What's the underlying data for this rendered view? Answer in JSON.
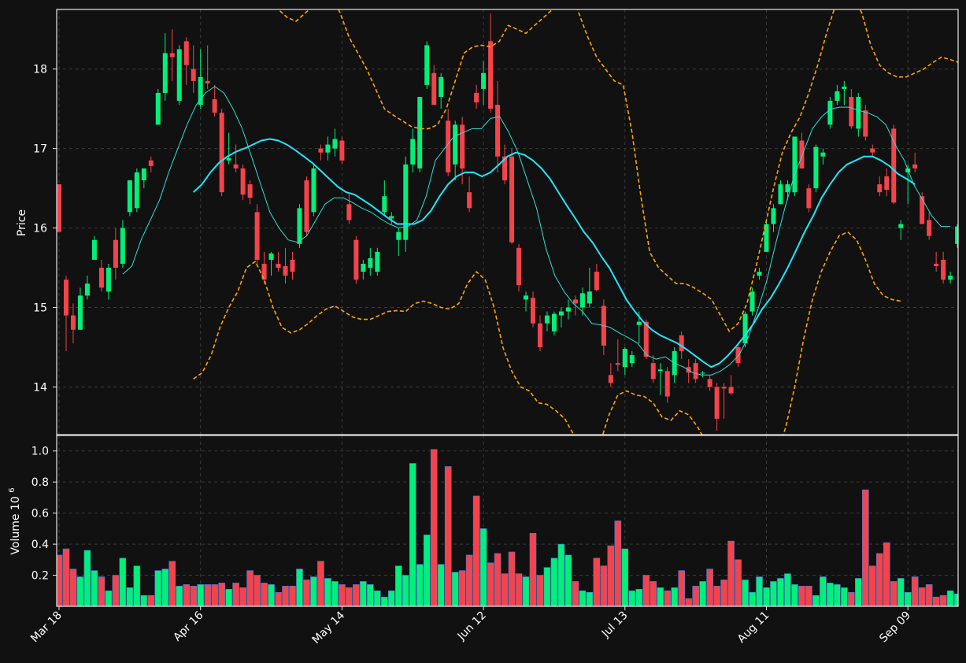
{
  "chart_data": {
    "type": "candlestick",
    "colors": {
      "background": "#111111",
      "up": "#00f07a",
      "down": "#f5434b",
      "ma_fast": "#2ee0d6",
      "ma_slow": "#1ee8ff",
      "bands": "#ffa500",
      "grid": "#3a3a3a"
    },
    "price_panel": {
      "ylabel": "Price",
      "ylim": [
        13.4,
        18.75
      ],
      "yticks": [
        "14",
        "15",
        "16",
        "17",
        "18"
      ],
      "grid": true
    },
    "volume_panel": {
      "ylabel": "Volume",
      "ylabel_exponent": "10",
      "ylabel_exponent_power": "6",
      "ylim": [
        0,
        1.1
      ],
      "yticks": [
        "0.2",
        "0.4",
        "0.6",
        "0.8",
        "1.0"
      ],
      "grid": true
    },
    "xaxis": {
      "tick_labels": [
        "Mar 18",
        "Apr 16",
        "May 14",
        "Jun 12",
        "Jul 13",
        "Aug 11",
        "Sep 09"
      ],
      "tick_index": [
        0,
        20,
        40,
        60,
        80,
        100,
        120
      ]
    },
    "candles": [
      [
        16.55,
        16.55,
        15.95,
        15.95,
        0.33
      ],
      [
        15.35,
        15.4,
        14.45,
        14.9,
        0.37
      ],
      [
        14.9,
        15.05,
        14.55,
        14.72,
        0.24
      ],
      [
        14.72,
        15.25,
        14.72,
        15.15,
        0.19
      ],
      [
        15.15,
        15.4,
        15.1,
        15.3,
        0.36
      ],
      [
        15.6,
        15.9,
        15.6,
        15.85,
        0.23
      ],
      [
        15.5,
        15.6,
        15.2,
        15.25,
        0.19
      ],
      [
        15.2,
        15.55,
        15.1,
        15.5,
        0.1
      ],
      [
        15.85,
        16.0,
        15.35,
        15.5,
        0.2
      ],
      [
        15.55,
        16.1,
        15.5,
        16.0,
        0.31
      ],
      [
        16.2,
        16.6,
        16.15,
        16.6,
        0.12
      ],
      [
        16.25,
        16.75,
        16.2,
        16.7,
        0.26
      ],
      [
        16.6,
        16.75,
        16.5,
        16.75,
        0.07
      ],
      [
        16.85,
        16.9,
        16.7,
        16.78,
        0.07
      ],
      [
        17.3,
        17.75,
        17.3,
        17.7,
        0.23
      ],
      [
        17.7,
        18.45,
        17.6,
        18.2,
        0.24
      ],
      [
        18.2,
        18.5,
        17.85,
        18.15,
        0.29
      ],
      [
        17.6,
        18.3,
        17.55,
        18.25,
        0.13
      ],
      [
        18.35,
        18.4,
        17.8,
        18.05,
        0.14
      ],
      [
        18.0,
        18.3,
        17.7,
        17.85,
        0.13
      ],
      [
        17.55,
        18.25,
        17.5,
        17.9,
        0.14
      ],
      [
        17.85,
        18.3,
        17.75,
        17.82,
        0.14
      ],
      [
        17.62,
        17.8,
        17.4,
        17.45,
        0.14
      ],
      [
        17.45,
        17.5,
        16.4,
        16.45,
        0.15
      ],
      [
        16.85,
        17.2,
        16.8,
        16.88,
        0.11
      ],
      [
        16.8,
        17.05,
        16.7,
        16.75,
        0.15
      ],
      [
        16.75,
        16.8,
        16.35,
        16.42,
        0.12
      ],
      [
        16.55,
        16.6,
        16.3,
        16.38,
        0.23
      ],
      [
        16.2,
        16.3,
        15.55,
        15.6,
        0.2
      ],
      [
        15.55,
        15.7,
        15.3,
        15.35,
        0.15
      ],
      [
        15.6,
        15.7,
        15.4,
        15.68,
        0.14
      ],
      [
        15.55,
        15.7,
        15.45,
        15.5,
        0.09
      ],
      [
        15.52,
        15.75,
        15.3,
        15.4,
        0.13
      ],
      [
        15.6,
        15.7,
        15.35,
        15.45,
        0.13
      ],
      [
        15.8,
        16.3,
        15.75,
        16.25,
        0.24
      ],
      [
        16.6,
        16.65,
        15.9,
        15.95,
        0.17
      ],
      [
        16.2,
        16.8,
        16.15,
        16.75,
        0.19
      ],
      [
        17.0,
        17.05,
        16.85,
        16.95,
        0.29
      ],
      [
        16.95,
        17.15,
        16.85,
        17.05,
        0.18
      ],
      [
        17.0,
        17.25,
        16.9,
        17.12,
        0.16
      ],
      [
        17.1,
        17.15,
        16.8,
        16.85,
        0.14
      ],
      [
        16.3,
        16.45,
        16.05,
        16.1,
        0.12
      ],
      [
        15.85,
        15.9,
        15.3,
        15.35,
        0.14
      ],
      [
        15.45,
        15.6,
        15.35,
        15.55,
        0.16
      ],
      [
        15.5,
        15.75,
        15.4,
        15.62,
        0.14
      ],
      [
        15.45,
        15.75,
        15.4,
        15.7,
        0.1
      ],
      [
        16.2,
        16.6,
        16.15,
        16.4,
        0.06
      ],
      [
        16.12,
        16.2,
        16.05,
        16.15,
        0.1
      ],
      [
        15.85,
        16.0,
        15.65,
        15.95,
        0.26
      ],
      [
        15.85,
        16.9,
        15.7,
        16.8,
        0.2
      ],
      [
        16.8,
        17.25,
        16.7,
        17.12,
        0.92
      ],
      [
        16.75,
        17.65,
        16.7,
        17.65,
        0.27
      ],
      [
        17.8,
        18.35,
        17.75,
        18.3,
        0.46
      ],
      [
        17.95,
        18.05,
        17.55,
        17.55,
        1.01
      ],
      [
        17.65,
        17.95,
        17.5,
        17.9,
        0.27
      ],
      [
        17.35,
        17.5,
        16.65,
        16.7,
        0.9
      ],
      [
        16.8,
        17.35,
        16.6,
        17.3,
        0.22
      ],
      [
        17.3,
        17.4,
        16.55,
        16.75,
        0.23
      ],
      [
        16.45,
        16.65,
        16.2,
        16.25,
        0.33
      ],
      [
        17.7,
        17.8,
        17.5,
        17.58,
        0.71
      ],
      [
        17.75,
        18.1,
        17.55,
        17.95,
        0.5
      ],
      [
        18.35,
        18.7,
        17.45,
        17.5,
        0.28
      ],
      [
        17.55,
        17.85,
        16.7,
        16.9,
        0.34
      ],
      [
        16.9,
        17.05,
        16.55,
        16.6,
        0.21
      ],
      [
        16.9,
        17.0,
        15.8,
        15.82,
        0.35
      ],
      [
        15.75,
        15.8,
        15.2,
        15.28,
        0.21
      ],
      [
        15.1,
        15.2,
        14.95,
        15.15,
        0.19
      ],
      [
        15.12,
        15.2,
        14.75,
        14.8,
        0.47
      ],
      [
        14.8,
        14.9,
        14.45,
        14.5,
        0.2
      ],
      [
        14.8,
        14.95,
        14.7,
        14.9,
        0.25
      ],
      [
        14.7,
        14.95,
        14.65,
        14.92,
        0.31
      ],
      [
        14.9,
        15.0,
        14.75,
        14.95,
        0.4
      ],
      [
        14.95,
        15.1,
        14.85,
        15.0,
        0.33
      ],
      [
        15.1,
        15.15,
        14.9,
        15.05,
        0.16
      ],
      [
        15.0,
        15.25,
        14.9,
        15.18,
        0.1
      ],
      [
        15.05,
        15.5,
        15.0,
        15.2,
        0.09
      ],
      [
        15.45,
        15.55,
        15.2,
        15.22,
        0.31
      ],
      [
        15.02,
        15.1,
        14.4,
        14.52,
        0.26
      ],
      [
        14.15,
        14.3,
        14.0,
        14.05,
        0.39
      ],
      [
        14.3,
        14.6,
        14.2,
        14.28,
        0.55
      ],
      [
        14.25,
        14.5,
        14.15,
        14.48,
        0.37
      ],
      [
        14.3,
        14.45,
        14.25,
        14.4,
        0.1
      ],
      [
        14.78,
        14.95,
        14.55,
        14.82,
        0.11
      ],
      [
        14.82,
        14.85,
        14.35,
        14.38,
        0.2
      ],
      [
        14.3,
        14.4,
        14.05,
        14.1,
        0.16
      ],
      [
        14.2,
        14.3,
        13.9,
        14.22,
        0.12
      ],
      [
        14.2,
        14.25,
        13.8,
        13.88,
        0.1
      ],
      [
        14.15,
        14.5,
        14.05,
        14.45,
        0.12
      ],
      [
        14.65,
        14.7,
        14.35,
        14.45,
        0.23
      ],
      [
        14.25,
        14.35,
        14.05,
        14.18,
        0.05
      ],
      [
        14.3,
        14.35,
        14.05,
        14.1,
        0.13
      ],
      [
        14.18,
        14.2,
        14.12,
        14.18,
        0.16
      ],
      [
        14.1,
        14.15,
        13.95,
        14.0,
        0.24
      ],
      [
        14.0,
        14.05,
        13.45,
        13.6,
        0.13
      ],
      [
        14.0,
        14.05,
        13.6,
        13.98,
        0.17
      ],
      [
        14.0,
        14.15,
        13.9,
        13.92,
        0.42
      ],
      [
        14.5,
        14.55,
        14.25,
        14.3,
        0.3
      ],
      [
        14.55,
        14.95,
        14.5,
        14.92,
        0.17
      ],
      [
        14.95,
        15.25,
        14.9,
        15.2,
        0.09
      ],
      [
        15.4,
        15.5,
        15.35,
        15.45,
        0.19
      ],
      [
        15.7,
        16.1,
        15.7,
        16.05,
        0.12
      ],
      [
        16.05,
        16.3,
        15.95,
        16.25,
        0.16
      ],
      [
        16.3,
        16.6,
        16.3,
        16.55,
        0.18
      ],
      [
        16.45,
        16.6,
        16.35,
        16.55,
        0.21
      ],
      [
        16.45,
        17.15,
        16.4,
        17.15,
        0.14
      ],
      [
        17.1,
        17.2,
        16.75,
        16.75,
        0.13
      ],
      [
        16.5,
        16.55,
        16.2,
        16.25,
        0.13
      ],
      [
        16.5,
        17.05,
        16.45,
        17.02,
        0.07
      ],
      [
        16.9,
        17.0,
        16.8,
        16.95,
        0.19
      ],
      [
        17.3,
        17.65,
        17.25,
        17.6,
        0.15
      ],
      [
        17.6,
        17.8,
        17.55,
        17.72,
        0.14
      ],
      [
        17.75,
        17.85,
        17.55,
        17.78,
        0.12
      ],
      [
        17.65,
        17.75,
        17.25,
        17.28,
        0.09
      ],
      [
        17.25,
        17.7,
        17.15,
        17.65,
        0.18
      ],
      [
        17.48,
        17.55,
        17.1,
        17.15,
        0.75
      ],
      [
        17.0,
        17.05,
        16.9,
        16.95,
        0.26
      ],
      [
        16.55,
        16.65,
        16.4,
        16.45,
        0.34
      ],
      [
        16.65,
        16.75,
        16.4,
        16.48,
        0.41
      ],
      [
        17.25,
        17.3,
        16.3,
        16.32,
        0.16
      ],
      [
        16.0,
        16.1,
        15.85,
        16.05,
        0.18
      ],
      [
        16.7,
        16.8,
        16.3,
        16.75,
        0.09
      ],
      [
        16.8,
        16.95,
        16.7,
        16.75,
        0.19
      ],
      [
        16.4,
        16.45,
        16.1,
        16.05,
        0.12
      ],
      [
        16.1,
        16.2,
        15.85,
        15.9,
        0.14
      ],
      [
        15.55,
        15.7,
        15.45,
        15.52,
        0.06
      ],
      [
        15.6,
        15.7,
        15.3,
        15.35,
        0.07
      ],
      [
        15.35,
        15.45,
        15.3,
        15.4,
        0.1
      ],
      [
        15.8,
        16.05,
        15.75,
        16.02,
        0.08
      ],
      [
        16.2,
        16.35,
        16.1,
        16.22,
        0.1
      ]
    ],
    "ma_slow": [
      16.45,
      16.55,
      16.7,
      16.82,
      16.9,
      16.96,
      17.0,
      17.05,
      17.1,
      17.12,
      17.1,
      17.05,
      16.98,
      16.9,
      16.82,
      16.72,
      16.62,
      16.52,
      16.45,
      16.42,
      16.35,
      16.28,
      16.2,
      16.12,
      16.05,
      16.05,
      16.05,
      16.1,
      16.22,
      16.4,
      16.55,
      16.65,
      16.7,
      16.7,
      16.65,
      16.7,
      16.8,
      16.9,
      16.95,
      16.92,
      16.85,
      16.75,
      16.62,
      16.45,
      16.28,
      16.12,
      15.95,
      15.82,
      15.65,
      15.5,
      15.3,
      15.1,
      14.95,
      14.82,
      14.72,
      14.65,
      14.6,
      14.55,
      14.48,
      14.4,
      14.32,
      14.25,
      14.3,
      14.4,
      14.52,
      14.65,
      14.8,
      14.98,
      15.12,
      15.3,
      15.5,
      15.72,
      15.95,
      16.15,
      16.38,
      16.55,
      16.7,
      16.8,
      16.85,
      16.9,
      16.9,
      16.85,
      16.78,
      16.68,
      16.62,
      16.55
    ],
    "ma_slow_start": 19,
    "ma_fast": [
      15.42,
      15.52,
      15.85,
      16.1,
      16.35,
      16.7,
      17.0,
      17.3,
      17.55,
      17.7,
      17.78,
      17.7,
      17.5,
      17.25,
      16.9,
      16.55,
      16.2,
      16.0,
      15.85,
      15.82,
      15.9,
      16.1,
      16.3,
      16.38,
      16.38,
      16.32,
      16.25,
      16.2,
      16.12,
      16.05,
      16.0,
      16.02,
      16.1,
      16.4,
      16.85,
      17.0,
      17.15,
      17.2,
      17.25,
      17.25,
      17.38,
      17.4,
      17.2,
      16.95,
      16.6,
      16.25,
      15.75,
      15.4,
      15.2,
      15.05,
      14.95,
      14.8,
      14.78,
      14.75,
      14.68,
      14.62,
      14.55,
      14.4,
      14.35,
      14.38,
      14.3,
      14.25,
      14.18,
      14.15,
      14.15,
      14.2,
      14.28,
      14.4,
      14.62,
      14.95,
      15.32,
      15.8,
      16.25,
      16.65,
      16.95,
      17.25,
      17.4,
      17.5,
      17.52,
      17.52,
      17.48,
      17.45,
      17.4,
      17.3,
      17.05,
      16.85,
      16.55,
      16.35,
      16.15,
      16.02,
      16.02
    ],
    "ma_fast_start": 9,
    "ma_fast_stride": 1.3,
    "band_upper": [
      18.85,
      18.95,
      19.0,
      18.9,
      18.75,
      18.65,
      18.6,
      18.7,
      18.8,
      18.88,
      18.95,
      18.7,
      18.4,
      18.2,
      18.0,
      17.75,
      17.5,
      17.42,
      17.35,
      17.28,
      17.25,
      17.25,
      17.3,
      17.5,
      17.85,
      18.2,
      18.28,
      18.3,
      18.28,
      18.35,
      18.55,
      18.5,
      18.45,
      18.55,
      18.65,
      18.75,
      18.9,
      19.0,
      18.7,
      18.4,
      18.15,
      18.0,
      17.85,
      17.8,
      17.2,
      16.4,
      15.7,
      15.5,
      15.4,
      15.3,
      15.3,
      15.25,
      15.18,
      15.1,
      14.9,
      14.7,
      14.8,
      15.05,
      15.5,
      16.0,
      16.5,
      16.95,
      17.2,
      17.4,
      17.7,
      18.05,
      18.45,
      18.8,
      18.95,
      18.95,
      18.7,
      18.3,
      18.05,
      17.95,
      17.9,
      17.9,
      17.95,
      18.0,
      18.08,
      18.15,
      18.12,
      18.08
    ],
    "band_upper_start": 26,
    "band_lower": [
      14.1,
      14.18,
      14.4,
      14.75,
      15.0,
      15.2,
      15.5,
      15.58,
      15.35,
      15.0,
      14.75,
      14.68,
      14.72,
      14.8,
      14.9,
      14.98,
      15.02,
      14.95,
      14.88,
      14.85,
      14.85,
      14.9,
      14.95,
      14.96,
      14.95,
      15.05,
      15.08,
      15.05,
      15.0,
      14.98,
      15.05,
      15.3,
      15.45,
      15.35,
      15.0,
      14.5,
      14.2,
      14.0,
      13.95,
      13.8,
      13.78,
      13.7,
      13.6,
      13.4,
      13.2,
      13.05,
      13.3,
      13.65,
      13.9,
      13.95,
      13.9,
      13.88,
      13.8,
      13.62,
      13.58,
      13.7,
      13.65,
      13.5,
      13.3,
      13.1,
      12.9,
      12.8,
      12.7,
      12.7,
      12.75,
      12.9,
      13.15,
      13.5,
      14.0,
      14.6,
      15.1,
      15.45,
      15.7,
      15.9,
      15.95,
      15.85,
      15.6,
      15.3,
      15.15,
      15.1,
      15.08
    ],
    "band_lower_start": 19,
    "band_lower_stride": 1.25
  }
}
